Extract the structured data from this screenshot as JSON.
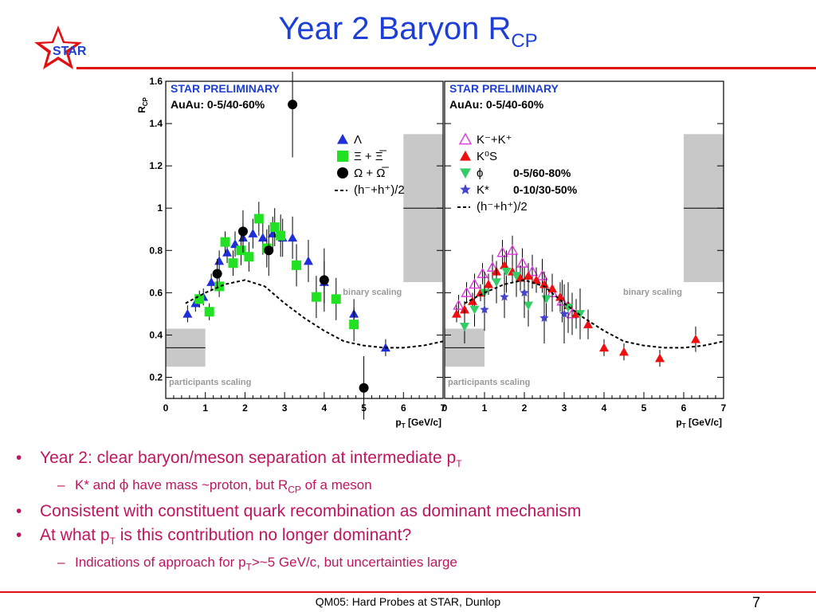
{
  "slide": {
    "title_main": "Year 2 Baryon R",
    "title_sub": "CP",
    "logo_text": "STAR",
    "footer": "QM05: Hard Probes at STAR, Dunlop",
    "page_number": "7",
    "colors": {
      "title": "#1d3fd6",
      "bullets": "#c0155f",
      "rules": "#e01010"
    }
  },
  "bullets": [
    {
      "pre": "Year 2: clear baryon/meson separation at intermediate p",
      "sub": "T",
      "post": ""
    },
    {
      "pre": "K* and ",
      "phi": "ϕ",
      "mid": " have mass ~proton, but R",
      "sub": "CP",
      "post": " of a meson"
    },
    {
      "text": "Consistent with constituent quark recombination as dominant mechanism"
    },
    {
      "pre": "At what p",
      "sub": "T",
      "post": " is this contribution no longer dominant?"
    },
    {
      "pre": "Indications of approach for p",
      "sub": "T",
      "post": ">~5 GeV/c, but uncertainties large"
    }
  ],
  "chart_data": [
    {
      "type": "scatter",
      "title": "STAR PRELIMINARY",
      "subtitle": "AuAu: 0-5/40-60%",
      "xlabel": "pT [GeV/c]",
      "ylabel": "RCP",
      "xlim": [
        0,
        7
      ],
      "ylim": [
        0.1,
        1.6
      ],
      "x_ticks": [
        0,
        1,
        2,
        3,
        4,
        5,
        6,
        7
      ],
      "y_ticks": [
        0.2,
        0.4,
        0.6,
        0.8,
        1,
        1.2,
        1.4,
        1.6
      ],
      "y_tick_labels": [
        "0.2",
        "0.4",
        "0.6",
        "0.8",
        "1",
        "1.2",
        "1.4",
        "1.6"
      ],
      "bands": [
        {
          "label": "binary scaling",
          "x": [
            6,
            7
          ],
          "y": [
            0.65,
            1.35
          ],
          "line": 1.0
        },
        {
          "label": "participants scaling",
          "x": [
            0,
            1
          ],
          "y": [
            0.25,
            0.43
          ],
          "line": 0.34
        }
      ],
      "series": [
        {
          "name": "Λ",
          "marker": "triangle-up",
          "color": "#1f2fd8",
          "x": [
            0.55,
            0.75,
            0.95,
            1.15,
            1.35,
            1.55,
            1.75,
            1.95,
            2.2,
            2.45,
            2.7,
            2.95,
            3.2,
            3.6,
            4.0,
            4.75,
            5.55
          ],
          "y": [
            0.5,
            0.55,
            0.58,
            0.65,
            0.75,
            0.79,
            0.83,
            0.86,
            0.88,
            0.86,
            0.88,
            0.86,
            0.86,
            0.75,
            0.65,
            0.5,
            0.34
          ],
          "err": [
            0.04,
            0.04,
            0.04,
            0.04,
            0.05,
            0.05,
            0.06,
            0.07,
            0.07,
            0.08,
            0.08,
            0.09,
            0.1,
            0.1,
            0.1,
            0.07,
            0.04
          ]
        },
        {
          "name": "Ξ + Ξ̅",
          "marker": "square",
          "color": "#22e022",
          "x": [
            0.85,
            1.1,
            1.35,
            1.5,
            1.7,
            1.9,
            2.1,
            2.35,
            2.55,
            2.75,
            2.9,
            3.3,
            3.8,
            4.3,
            4.75
          ],
          "y": [
            0.57,
            0.51,
            0.63,
            0.84,
            0.74,
            0.8,
            0.77,
            0.95,
            0.81,
            0.91,
            0.87,
            0.73,
            0.58,
            0.57,
            0.45
          ],
          "err": [
            0.04,
            0.04,
            0.05,
            0.05,
            0.06,
            0.07,
            0.07,
            0.08,
            0.09,
            0.09,
            0.1,
            0.1,
            0.1,
            0.1,
            0.08
          ]
        },
        {
          "name": "Ω + Ω̅",
          "marker": "circle",
          "color": "#000000",
          "x": [
            1.3,
            1.95,
            2.6,
            3.2,
            4.0,
            5.0
          ],
          "y": [
            0.69,
            0.89,
            0.8,
            1.49,
            0.66,
            0.15
          ],
          "err": [
            0.07,
            0.1,
            0.12,
            0.25,
            0.15,
            0.15
          ]
        },
        {
          "name": "(h⁻+h⁺)/2",
          "marker": "line-dashed",
          "color": "#000000",
          "x": [
            0.5,
            1.0,
            1.5,
            2.0,
            2.5,
            3.0,
            3.5,
            4.0,
            4.5,
            5.0,
            5.5,
            6.0,
            6.5,
            7.0
          ],
          "y": [
            0.55,
            0.6,
            0.64,
            0.66,
            0.63,
            0.55,
            0.48,
            0.42,
            0.37,
            0.35,
            0.34,
            0.34,
            0.35,
            0.37
          ]
        }
      ]
    },
    {
      "type": "scatter",
      "title": "STAR PRELIMINARY",
      "subtitle": "AuAu: 0-5/40-60%",
      "xlabel": "pT [GeV/c]",
      "ylabel": "",
      "xlim": [
        0,
        7
      ],
      "ylim": [
        0.1,
        1.6
      ],
      "x_ticks": [
        0,
        1,
        2,
        3,
        4,
        5,
        6,
        7
      ],
      "centrality_labels": [
        "0-5/60-80%",
        "0-10/30-50%"
      ],
      "bands": [
        {
          "label": "binary scaling",
          "x": [
            6,
            7
          ],
          "y": [
            0.65,
            1.35
          ],
          "line": 1.0
        },
        {
          "label": "participants scaling",
          "x": [
            0,
            1
          ],
          "y": [
            0.25,
            0.43
          ],
          "line": 0.34
        }
      ],
      "series": [
        {
          "name": "K⁻+K⁺",
          "marker": "triangle-up-open",
          "color": "#e040e0",
          "x": [
            0.35,
            0.55,
            0.75,
            0.95,
            1.2,
            1.45,
            1.7,
            1.95,
            2.2,
            2.45,
            2.7,
            2.95,
            3.2
          ],
          "y": [
            0.54,
            0.6,
            0.64,
            0.69,
            0.72,
            0.79,
            0.8,
            0.74,
            0.7,
            0.68,
            0.6,
            0.56,
            0.5
          ],
          "err": [
            0.05,
            0.05,
            0.05,
            0.05,
            0.06,
            0.06,
            0.07,
            0.07,
            0.08,
            0.08,
            0.09,
            0.1,
            0.1
          ]
        },
        {
          "name": "K⁰S",
          "marker": "triangle-up",
          "color": "#ee1010",
          "x": [
            0.3,
            0.5,
            0.7,
            0.9,
            1.1,
            1.3,
            1.5,
            1.7,
            1.9,
            2.1,
            2.3,
            2.5,
            2.7,
            2.9,
            3.1,
            3.3,
            3.6,
            4.0,
            4.5,
            5.4,
            6.3
          ],
          "y": [
            0.5,
            0.52,
            0.56,
            0.6,
            0.64,
            0.7,
            0.73,
            0.7,
            0.67,
            0.68,
            0.66,
            0.64,
            0.62,
            0.58,
            0.54,
            0.5,
            0.45,
            0.34,
            0.32,
            0.29,
            0.38
          ],
          "err": [
            0.04,
            0.04,
            0.04,
            0.04,
            0.05,
            0.05,
            0.05,
            0.05,
            0.06,
            0.06,
            0.06,
            0.06,
            0.07,
            0.07,
            0.07,
            0.07,
            0.07,
            0.04,
            0.04,
            0.04,
            0.06
          ]
        },
        {
          "name": "ϕ",
          "marker": "triangle-down",
          "color": "#33cc66",
          "x": [
            0.5,
            0.75,
            1.0,
            1.3,
            1.55,
            1.8,
            2.1,
            2.55,
            3.1,
            3.4
          ],
          "y": [
            0.44,
            0.52,
            0.6,
            0.65,
            0.7,
            0.68,
            0.54,
            0.57,
            0.53,
            0.5
          ],
          "err": [
            0.08,
            0.08,
            0.1,
            0.1,
            0.1,
            0.1,
            0.1,
            0.1,
            0.12,
            0.12
          ]
        },
        {
          "name": "K*",
          "marker": "star",
          "color": "#4444cc",
          "x": [
            1.0,
            1.5,
            2.0,
            2.5,
            3.0
          ],
          "y": [
            0.52,
            0.58,
            0.6,
            0.48,
            0.5
          ],
          "err": [
            0.1,
            0.1,
            0.12,
            0.12,
            0.14
          ]
        },
        {
          "name": "(h⁻+h⁺)/2",
          "marker": "line-dashed",
          "color": "#000000",
          "x": [
            0.5,
            1.0,
            1.5,
            2.0,
            2.5,
            3.0,
            3.5,
            4.0,
            4.5,
            5.0,
            5.5,
            6.0,
            6.5,
            7.0
          ],
          "y": [
            0.55,
            0.6,
            0.64,
            0.66,
            0.63,
            0.55,
            0.48,
            0.42,
            0.37,
            0.35,
            0.34,
            0.34,
            0.35,
            0.37
          ]
        }
      ]
    }
  ]
}
